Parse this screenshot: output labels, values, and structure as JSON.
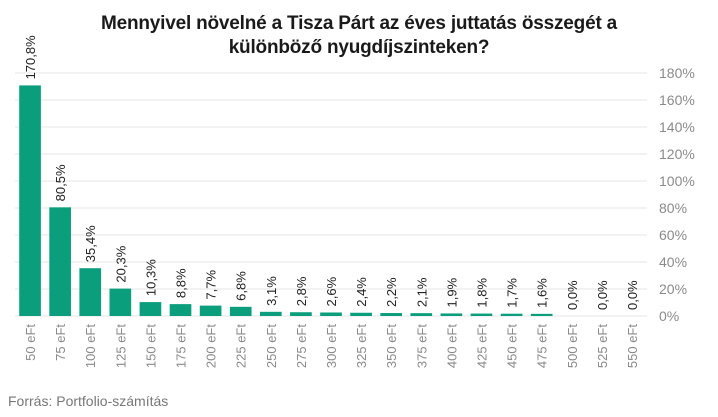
{
  "title_lines": [
    "Mennyivel növelné a Tisza Párt az éves juttatás összegét a",
    "különböző nyugdíjszinteken?"
  ],
  "source": "Forrás: Portfolio-számítás",
  "colors": {
    "bar": "#0a9e7c",
    "grid": "#e6e6e6",
    "axis_text": "#8a8a8a",
    "label_text": "#222222"
  },
  "chart_data": {
    "type": "bar",
    "title": "Mennyivel növelné a Tisza Párt az éves juttatás összegét a különböző nyugdíjszinteken?",
    "xlabel": "",
    "ylabel": "",
    "categories": [
      "50 eFt",
      "75 eFt",
      "100 eFt",
      "125 eFt",
      "150 eFt",
      "175 eFt",
      "200 eFt",
      "225 eFt",
      "250 eFt",
      "275 eFt",
      "300 eFt",
      "325 eFt",
      "350 eFt",
      "375 eFt",
      "400 eFt",
      "425 eFt",
      "450 eFt",
      "475 eFt",
      "500 eFt",
      "525 eFt",
      "550 eFt"
    ],
    "values": [
      170.8,
      80.5,
      35.4,
      20.3,
      10.3,
      8.8,
      7.7,
      6.8,
      3.1,
      2.8,
      2.6,
      2.4,
      2.2,
      2.1,
      1.9,
      1.8,
      1.7,
      1.6,
      0.0,
      0.0,
      0.0
    ],
    "value_labels": [
      "170,8%",
      "80,5%",
      "35,4%",
      "20,3%",
      "10,3%",
      "8,8%",
      "7,7%",
      "6,8%",
      "3,1%",
      "2,8%",
      "2,6%",
      "2,4%",
      "2,2%",
      "2,1%",
      "1,9%",
      "1,8%",
      "1,7%",
      "1,6%",
      "0,0%",
      "0,0%",
      "0,0%"
    ],
    "y_ticks": [
      0,
      20,
      40,
      60,
      80,
      100,
      120,
      140,
      160,
      180
    ],
    "y_tick_labels": [
      "0%",
      "20%",
      "40%",
      "60%",
      "80%",
      "100%",
      "120%",
      "140%",
      "160%",
      "180%"
    ],
    "ylim": [
      0,
      180
    ],
    "y_axis_side": "right",
    "grid": true,
    "legend": "none"
  }
}
